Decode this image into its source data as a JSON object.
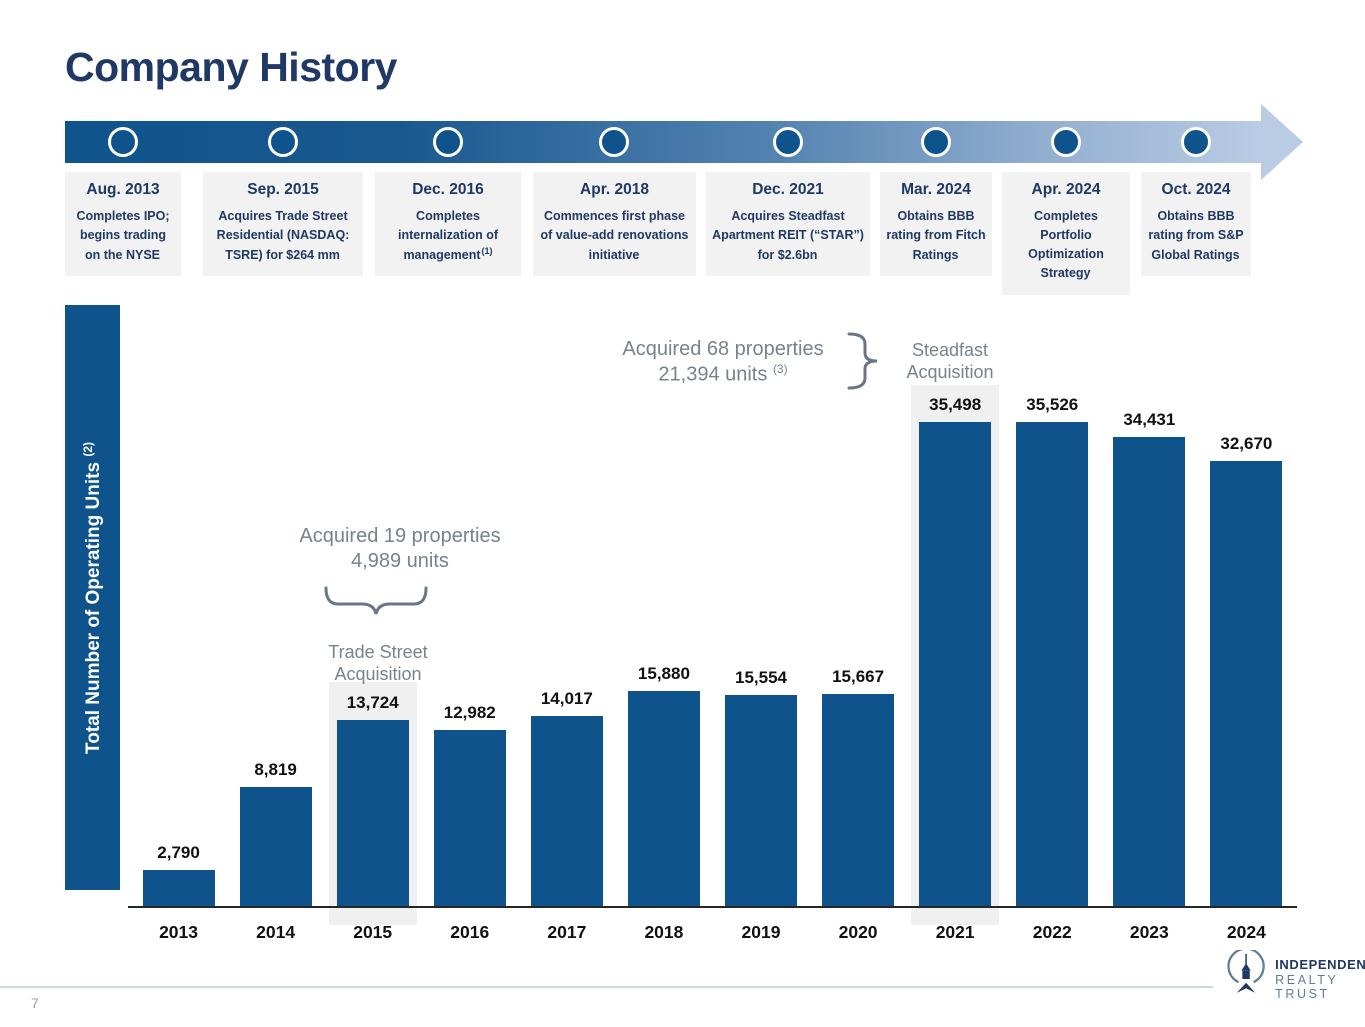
{
  "slide": {
    "title": "Company History"
  },
  "timeline": {
    "milestones": [
      {
        "date": "Aug. 2013",
        "description": "Completes IPO; begins trading on the NYSE"
      },
      {
        "date": "Sep. 2015",
        "description": "Acquires Trade Street Residential (NASDAQ: TSRE) for $264 mm"
      },
      {
        "date": "Dec. 2016",
        "description": "Completes internalization of management",
        "footnote": "(1)"
      },
      {
        "date": "Apr. 2018",
        "description": "Commences first phase of value-add renovations initiative"
      },
      {
        "date": "Dec. 2021",
        "description": "Acquires Steadfast Apartment REIT (“STAR”) for $2.6bn"
      },
      {
        "date": "Mar. 2024",
        "description": "Obtains BBB rating from Fitch Ratings"
      },
      {
        "date": "Apr. 2024",
        "description": "Completes Portfolio Optimization Strategy"
      },
      {
        "date": "Oct. 2024",
        "description": "Obtains BBB rating from S&P Global Ratings"
      }
    ]
  },
  "chart_data": {
    "type": "bar",
    "title": "",
    "xlabel": "",
    "ylabel": "Total Number of Operating Units",
    "ylabel_footnote": "(2)",
    "categories": [
      "2013",
      "2014",
      "2015",
      "2016",
      "2017",
      "2018",
      "2019",
      "2020",
      "2021",
      "2022",
      "2023",
      "2024"
    ],
    "values": [
      2790,
      8819,
      13724,
      12982,
      14017,
      15880,
      15554,
      15667,
      35498,
      35526,
      34431,
      32670
    ],
    "value_labels": [
      "2,790",
      "8,819",
      "13,724",
      "12,982",
      "14,017",
      "15,880",
      "15,554",
      "15,667",
      "35,498",
      "35,526",
      "34,431",
      "32,670"
    ],
    "ylim": [
      0,
      36000
    ],
    "grid": "off",
    "legend": "none",
    "bar_color": "#0E538C",
    "highlight_color": "#F0F0F0",
    "highlighted_categories": [
      "2015",
      "2021"
    ],
    "annotations": [
      {
        "lines": [
          "Acquired 19 properties",
          "4,989 units"
        ],
        "label_lines": [
          "Trade Street",
          "Acquisition"
        ],
        "target_year": "2015"
      },
      {
        "lines": [
          "Acquired 68 properties",
          "21,394 units"
        ],
        "footnote": "(3)",
        "label_lines": [
          "Steadfast",
          "Acquisition"
        ],
        "target_year": "2021"
      }
    ]
  },
  "colors": {
    "navy": "#1F3864",
    "bar_blue": "#0E538C",
    "timeline_gradient_start": "#0F548D",
    "timeline_gradient_end": "#B9CCE4",
    "annotation_gray": "#78828E"
  },
  "footer": {
    "page_number": "7",
    "logo": {
      "line1": "INDEPENDENCE",
      "line2": "REALTY TRUST"
    }
  }
}
